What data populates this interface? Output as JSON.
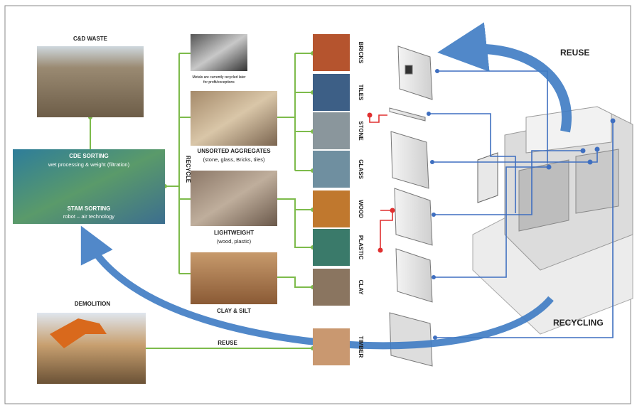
{
  "labels": {
    "cd_waste": "C&D WASTE",
    "cde_sorting": "CDE SORTING",
    "cde_sub": "wet processing & weight (filtration)",
    "stam_sorting": "STAM SORTING",
    "stam_sub": "robot – air technology",
    "recycle": "RECYCLE",
    "metals_note_1": "Metals are currently recycled later",
    "metals_note_2": "for profit/exceptions",
    "unsorted": "UNSORTED AGGREGATES",
    "unsorted_sub": "(stone, glass, Bricks, tiles)",
    "lightweight": "LIGHTWEIGHT",
    "lightweight_sub": "(wood, plastic)",
    "clay_silt": "CLAY & SILT",
    "demolition": "DEMOLITION",
    "reuse_line": "REUSE",
    "reuse_arrow": "REUSE",
    "recycling_arrow": "RECYCLING"
  },
  "materials": [
    "BRICKS",
    "TILES",
    "STONE",
    "GLASS",
    "WOOD",
    "PLASTIC",
    "CLAY",
    "TIMBER"
  ]
}
